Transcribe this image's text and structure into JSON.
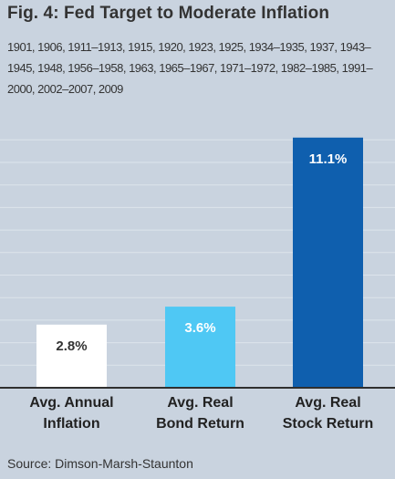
{
  "chart_data": {
    "type": "bar",
    "title": "Fig. 4: Fed Target to Moderate Inflation",
    "subtitle": "1901, 1906, 1911–1913, 1915, 1920, 1923, 1925, 1934–1935, 1937, 1943–1945, 1948, 1956–1958, 1963, 1965–1967, 1971–1972, 1982–1985, 1991–2000, 2002–2007, 2009",
    "categories": [
      "Avg. Annual Inflation",
      "Avg. Real Bond Return",
      "Avg. Real Stock Return"
    ],
    "category_lines": [
      [
        "Avg. Annual",
        "Inflation"
      ],
      [
        "Avg. Real",
        "Bond Return"
      ],
      [
        "Avg. Real",
        "Stock Return"
      ]
    ],
    "values": [
      2.8,
      3.6,
      11.1
    ],
    "value_labels": [
      "2.8%",
      "3.6%",
      "11.1%"
    ],
    "bar_colors": [
      "#ffffff",
      "#4fc8f4",
      "#0f5fae"
    ],
    "label_colors": [
      "#333333",
      "#ffffff",
      "#ffffff"
    ],
    "ylim": [
      0,
      12
    ],
    "grid": true,
    "xlabel": "",
    "ylabel": "",
    "source": "Source: Dimson-Marsh-Staunton"
  }
}
